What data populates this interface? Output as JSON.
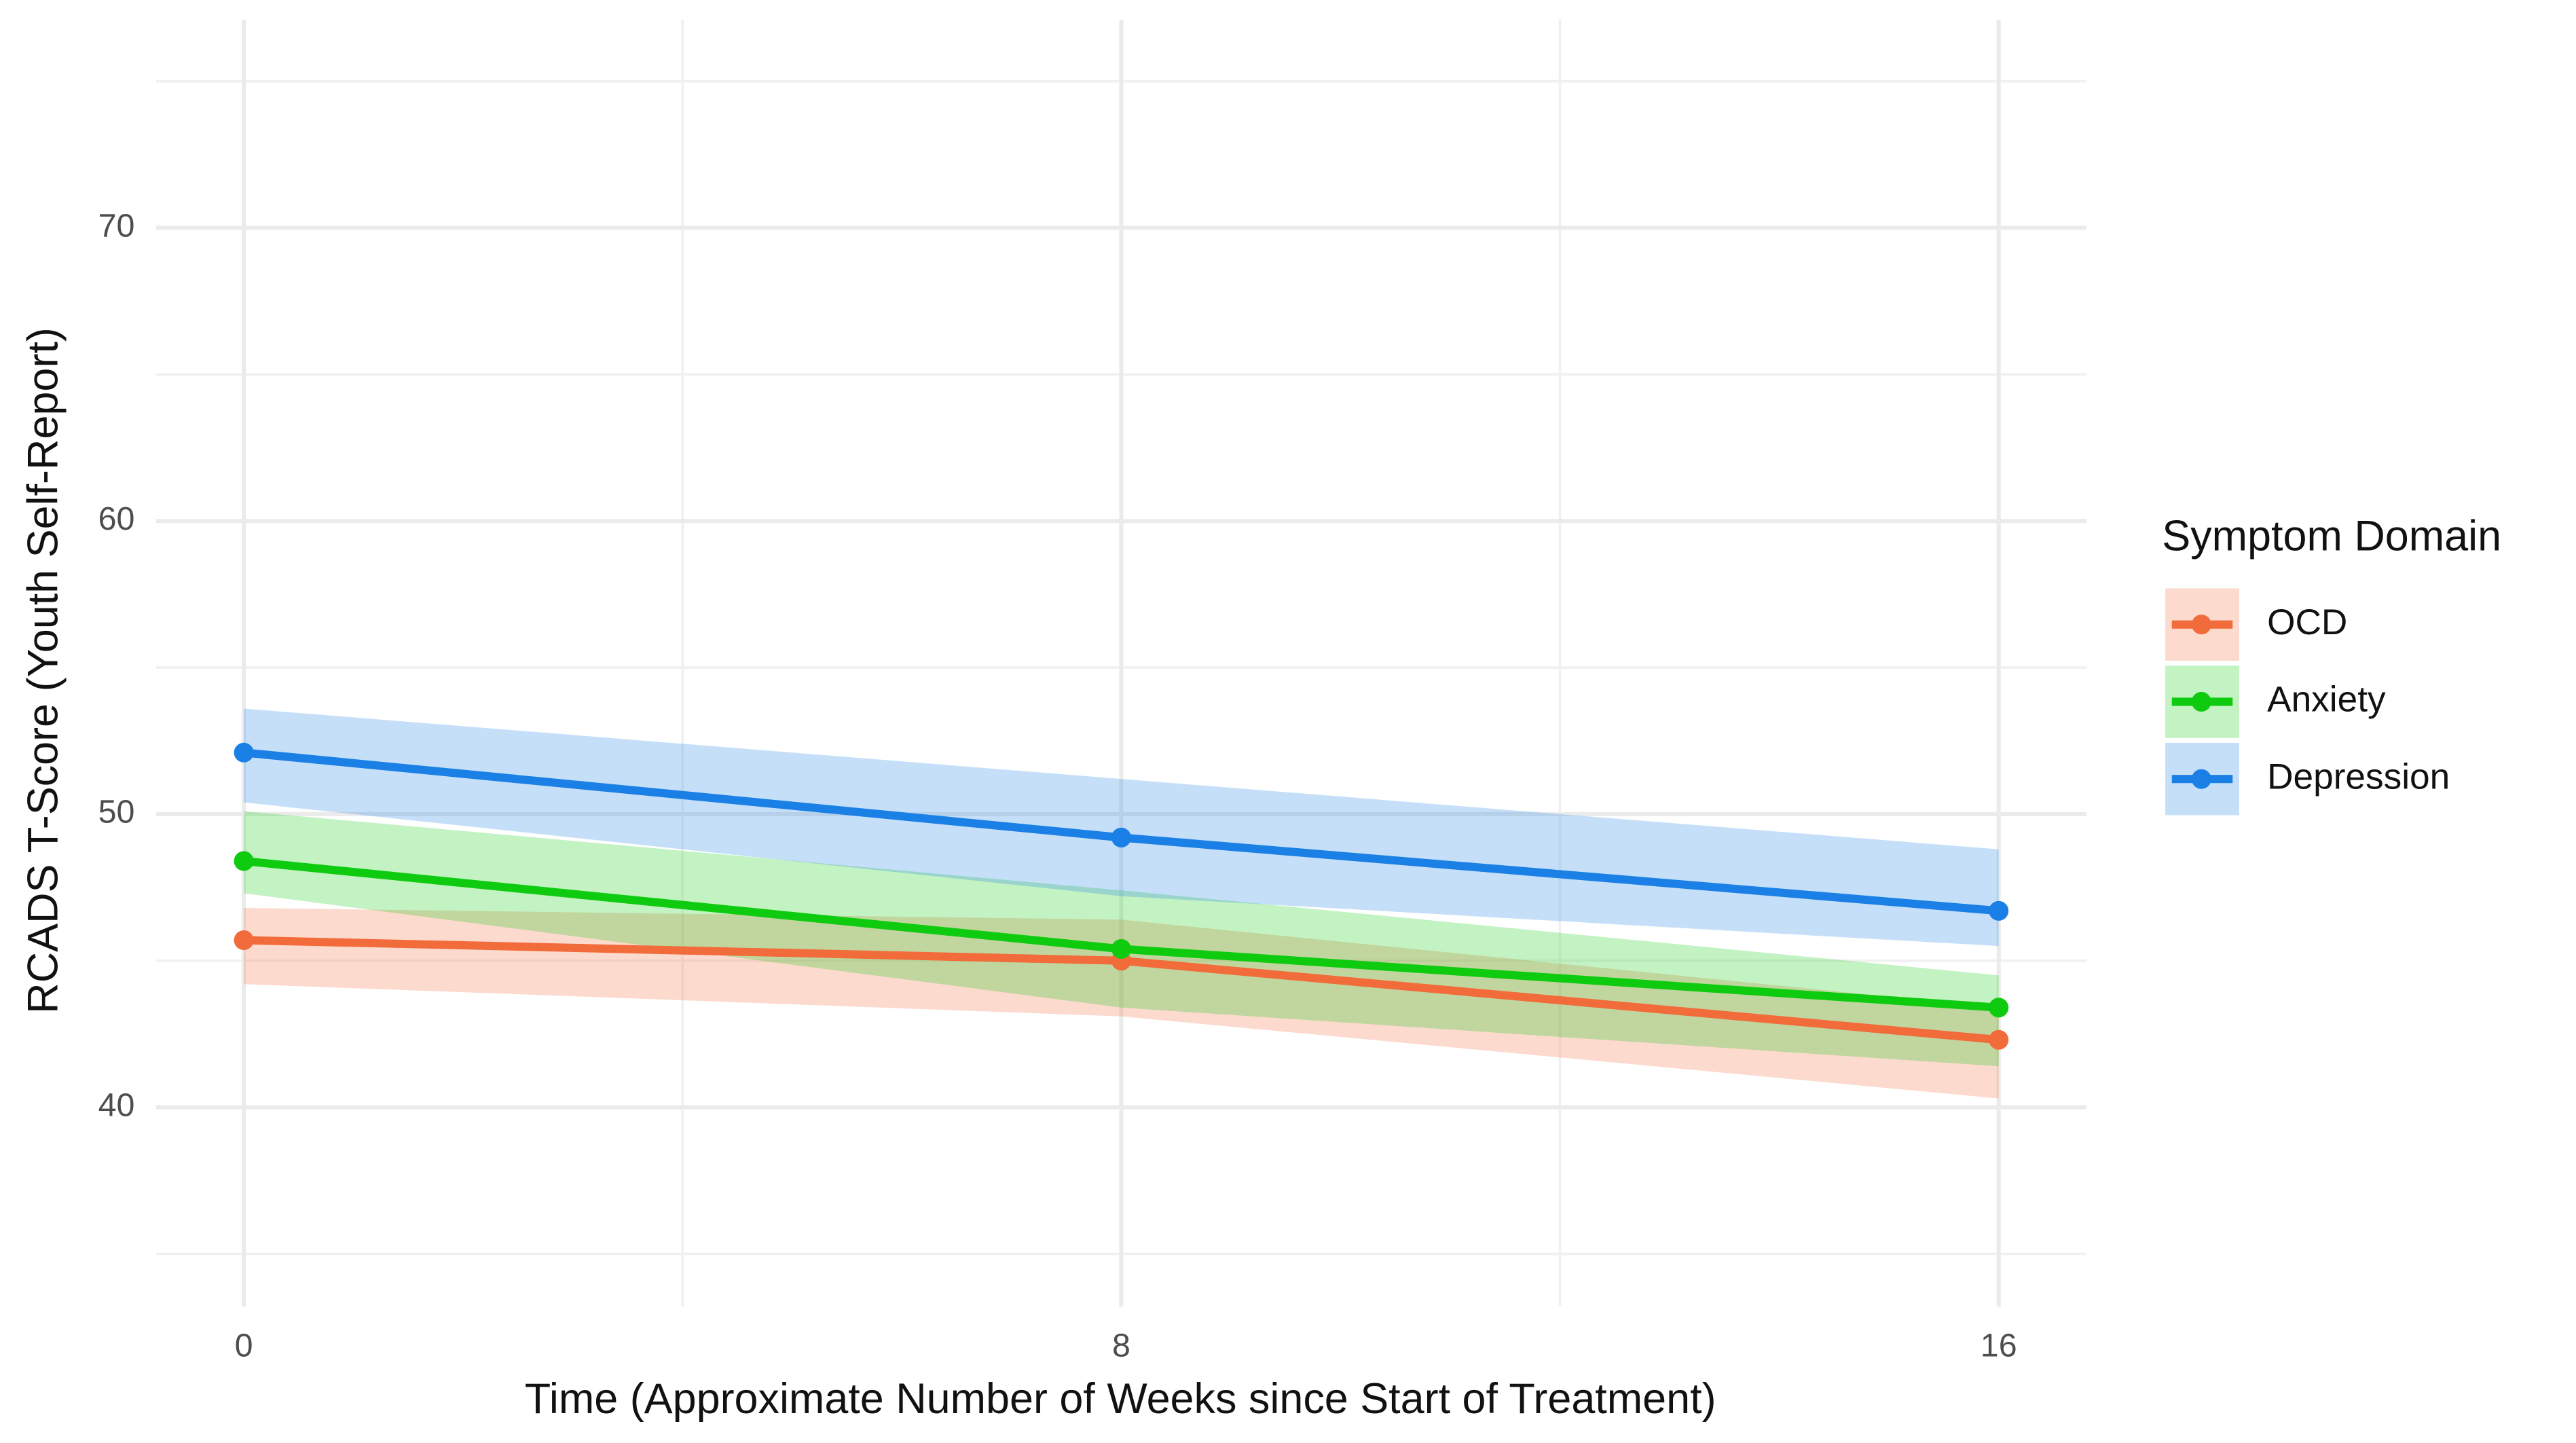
{
  "chart_data": {
    "type": "line",
    "x_label": "Time (Approximate Number of Weeks since Start of Treatment)",
    "y_label": "RCADS T-Score (Youth Self-Report)",
    "legend_title": "Symptom Domain",
    "legend_position": "right",
    "grid": true,
    "x": [
      0,
      8,
      16
    ],
    "xlim": [
      -0.8,
      16.8
    ],
    "xticks": [
      0,
      8,
      16
    ],
    "x_minor_ticks": [
      4,
      12
    ],
    "ylim": [
      33.2,
      77.1
    ],
    "yticks": [
      40,
      50,
      60,
      70
    ],
    "y_minor_ticks": [
      35,
      45,
      55,
      65,
      75
    ],
    "series": [
      {
        "name": "OCD",
        "color": "#f26b3a",
        "values": [
          45.7,
          45.0,
          42.3
        ],
        "lower": [
          44.2,
          43.1,
          40.3
        ],
        "upper": [
          46.8,
          46.4,
          43.4
        ]
      },
      {
        "name": "Anxiety",
        "color": "#0fcb0f",
        "values": [
          48.4,
          45.4,
          43.4
        ],
        "lower": [
          47.3,
          43.4,
          41.4
        ],
        "upper": [
          50.1,
          47.4,
          44.5
        ]
      },
      {
        "name": "Depression",
        "color": "#1a80e6",
        "values": [
          52.1,
          49.2,
          46.7
        ],
        "lower": [
          50.4,
          47.2,
          45.5
        ],
        "upper": [
          53.6,
          51.2,
          48.8
        ]
      }
    ]
  }
}
